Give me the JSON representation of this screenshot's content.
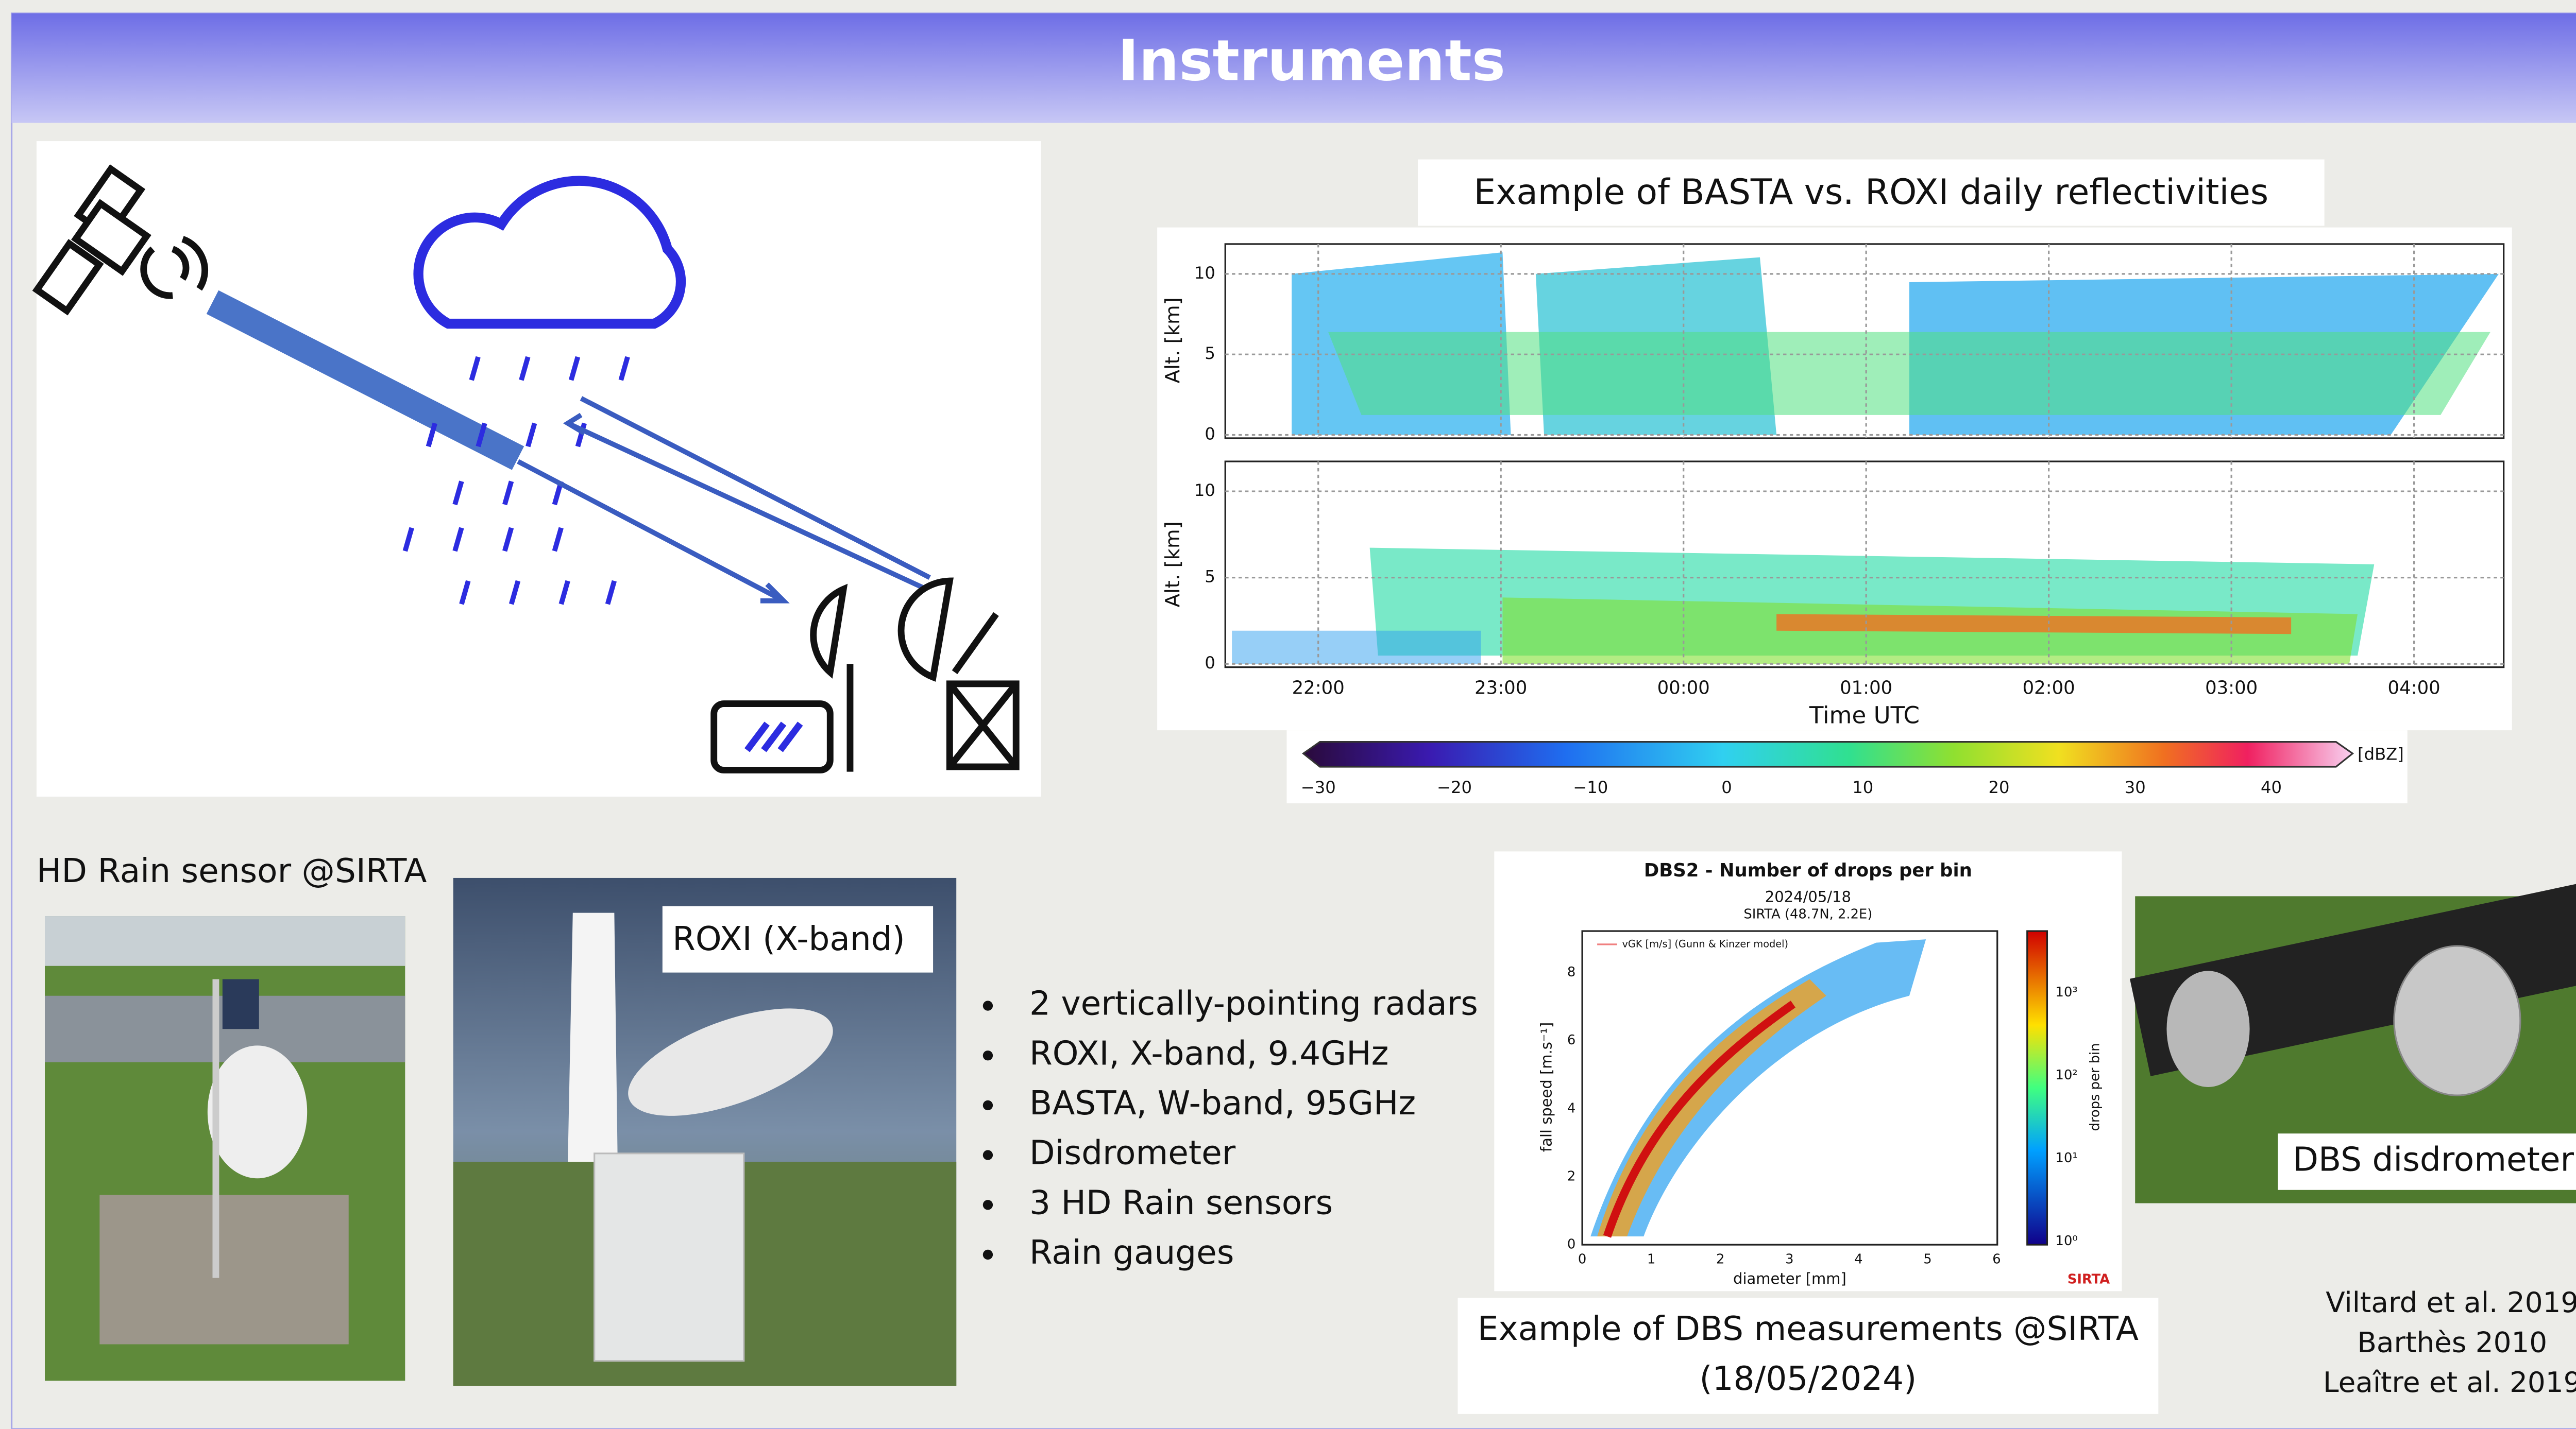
{
  "header": {
    "title": "Instruments"
  },
  "radar_figure": {
    "caption": "Example of BASTA vs. ROXI daily reflectivities",
    "y_label": "Alt. [km]",
    "y_ticks": [
      "0",
      "5",
      "10"
    ],
    "x_ticks": [
      "22:00",
      "23:00",
      "00:00",
      "01:00",
      "02:00",
      "03:00",
      "04:00"
    ],
    "x_label": "Time UTC",
    "colorbar_ticks": [
      "−30",
      "−20",
      "−10",
      "0",
      "10",
      "20",
      "30",
      "40"
    ],
    "colorbar_unit": "[dBZ]"
  },
  "hd_rain_photo": {
    "label": "HD Rain sensor @SIRTA"
  },
  "roxi_photo": {
    "label": "ROXI (X-band)"
  },
  "bullets": [
    "2 vertically-pointing radars",
    "ROXI, X-band, 9.4GHz",
    "BASTA, W-band, 95GHz",
    "Disdrometer",
    "3 HD Rain sensors",
    "Rain gauges"
  ],
  "dbs_figure": {
    "title": "DBS2 - Number of drops per bin",
    "date": "2024/05/18",
    "site": "SIRTA (48.7N, 2.2E)",
    "legend": "vGK [m/s] (Gunn & Kinzer model)",
    "y_label": "fall speed [m.s⁻¹]",
    "x_label": "diameter [mm]",
    "x_ticks": [
      "0",
      "1",
      "2",
      "3",
      "4",
      "5",
      "6"
    ],
    "y_ticks": [
      "0",
      "2",
      "4",
      "6",
      "8"
    ],
    "colorbar_label": "drops per bin",
    "colorbar_ticks": [
      "10⁰",
      "10¹",
      "10²",
      "10³"
    ],
    "logo": "SIRTA",
    "caption": [
      "Example of DBS measurements @SIRTA",
      "(18/05/2024)"
    ]
  },
  "dbs_photo": {
    "label": "DBS disdrometer"
  },
  "references": [
    "Viltard et al. 2019",
    "Barthès 2010",
    "Leaître et al. 2019"
  ]
}
